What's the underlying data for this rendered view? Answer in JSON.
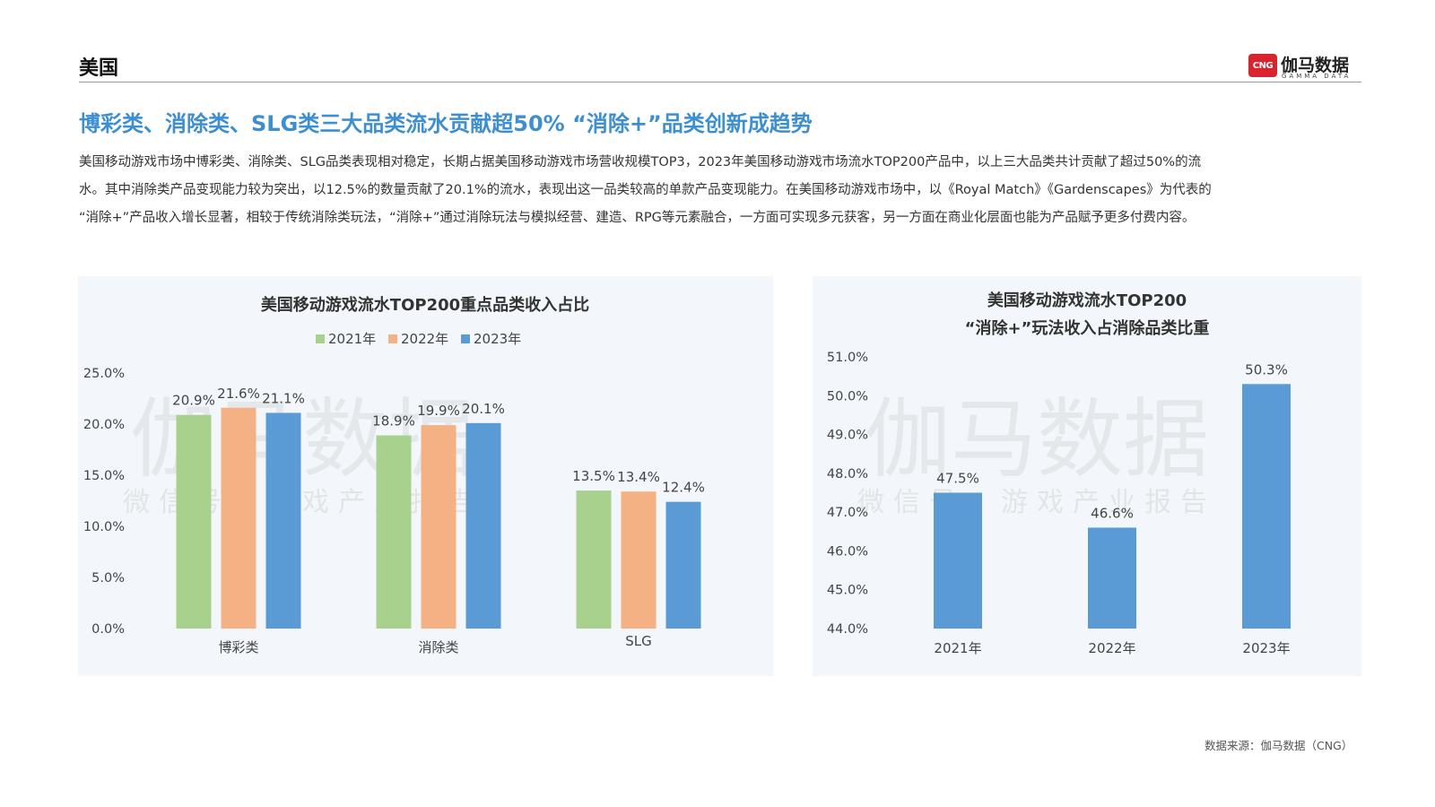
{
  "header": {
    "region": "美国",
    "brand_logo": "CNG",
    "brand_name": "伽马数据",
    "brand_sub": "GAMMA DATA"
  },
  "headline": "博彩类、消除类、SLG类三大品类流水贡献超50%  “消除+”品类创新成趋势",
  "body": {
    "line1": "美国移动游戏市场中博彩类、消除类、SLG品类表现相对稳定，长期占据美国移动游戏市场营收规模TOP3，2023年美国移动游戏市场流水TOP200产品中，以上三大品类共计贡献了超过50%的流",
    "line2": "水。其中消除类产品变现能力较为突出，以12.5%的数量贡献了20.1%的流水，表现出这一品类较高的单款产品变现能力。在美国移动游戏市场中，以《Royal Match》《Gardenscapes》为代表的",
    "line3": "“消除+”产品收入增长显著，相较于传统消除类玩法，“消除+”通过消除玩法与模拟经营、建造、RPG等元素融合，一方面可实现多元获客，另一方面在商业化层面也能为产品赋予更多付费内容。"
  },
  "watermark": {
    "big": "伽马数据",
    "small": "微信号：游戏产业报告"
  },
  "source": "数据来源：伽马数据（CNG）",
  "colors": {
    "accent": "#3d8fd1",
    "series_2021": "#a9d18e",
    "series_2022": "#f4b183",
    "series_2023": "#5b9bd5"
  },
  "chart_data": [
    {
      "type": "bar",
      "title": "美国移动游戏流水TOP200重点品类收入占比",
      "categories": [
        "博彩类",
        "消除类",
        "SLG"
      ],
      "series": [
        {
          "name": "2021年",
          "values": [
            20.9,
            18.9,
            13.5
          ],
          "labels": [
            "20.9%",
            "18.9%",
            "13.5%"
          ],
          "color": "#a9d18e"
        },
        {
          "name": "2022年",
          "values": [
            21.6,
            19.9,
            13.4
          ],
          "labels": [
            "21.6%",
            "19.9%",
            "13.4%"
          ],
          "color": "#f4b183"
        },
        {
          "name": "2023年",
          "values": [
            21.1,
            20.1,
            12.4
          ],
          "labels": [
            "21.1%",
            "20.1%",
            "12.4%"
          ],
          "color": "#5b9bd5"
        }
      ],
      "ylim": [
        0,
        25
      ],
      "yticks": [
        "0.0%",
        "5.0%",
        "10.0%",
        "15.0%",
        "20.0%",
        "25.0%"
      ],
      "ytick_values": [
        0,
        5,
        10,
        15,
        20,
        25
      ],
      "legend": "top-center",
      "grid": false
    },
    {
      "type": "bar",
      "title": [
        "美国移动游戏流水TOP200",
        "“消除+”玩法收入占消除品类比重"
      ],
      "categories": [
        "2021年",
        "2022年",
        "2023年"
      ],
      "series": [
        {
          "values": [
            47.5,
            46.6,
            50.3
          ],
          "labels": [
            "47.5%",
            "46.6%",
            "50.3%"
          ],
          "color": "#5b9bd5"
        }
      ],
      "ylim": [
        44,
        51
      ],
      "yticks": [
        "44.0%",
        "45.0%",
        "46.0%",
        "47.0%",
        "48.0%",
        "49.0%",
        "50.0%",
        "51.0%"
      ],
      "ytick_values": [
        44,
        45,
        46,
        47,
        48,
        49,
        50,
        51
      ],
      "grid": false
    }
  ]
}
